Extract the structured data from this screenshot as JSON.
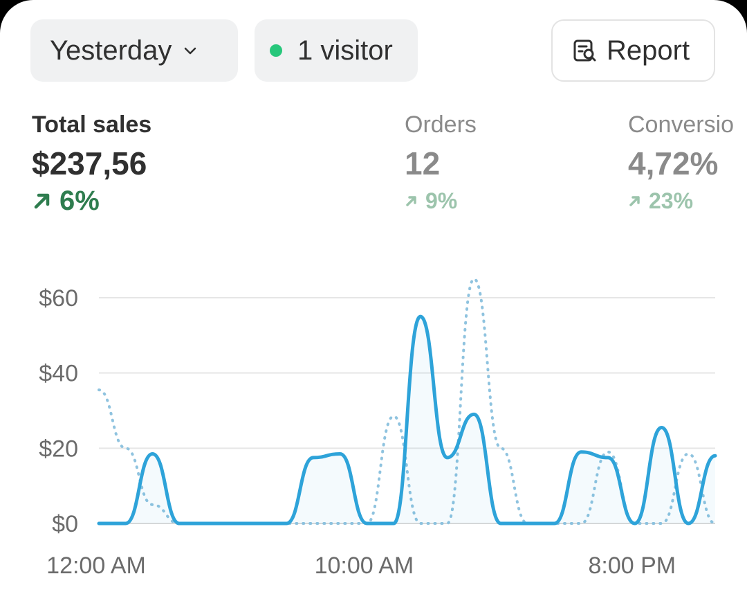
{
  "filter": {
    "date_label": "Yesterday",
    "visitors_label": "1 visitor"
  },
  "actions": {
    "report_label": "Report"
  },
  "metrics": [
    {
      "label": "Total sales",
      "value": "$237,56",
      "delta": "6%"
    },
    {
      "label": "Orders",
      "value": "12",
      "delta": "9%"
    },
    {
      "label": "Conversio",
      "value": "4,72%",
      "delta": "23%"
    }
  ],
  "colors": {
    "accent": "#2ea3d9",
    "positive": "#2f7d4f",
    "positive_muted": "#9cc4ac",
    "live_dot": "#27c77b"
  },
  "chart_data": {
    "type": "line",
    "x": [
      "12:00 AM",
      "1:00 AM",
      "2:00 AM",
      "3:00 AM",
      "4:00 AM",
      "5:00 AM",
      "6:00 AM",
      "7:00 AM",
      "8:00 AM",
      "9:00 AM",
      "10:00 AM",
      "11:00 AM",
      "12:00 PM",
      "1:00 PM",
      "2:00 PM",
      "3:00 PM",
      "4:00 PM",
      "5:00 PM",
      "6:00 PM",
      "7:00 PM",
      "8:00 PM",
      "9:00 PM",
      "10:00 PM",
      "11:00 PM"
    ],
    "xticks": [
      "12:00 AM",
      "10:00 AM",
      "8:00 PM"
    ],
    "yticks": [
      "$0",
      "$20",
      "$40",
      "$60"
    ],
    "ylim": [
      0,
      60
    ],
    "grid": true,
    "series": [
      {
        "style": "solid",
        "values": [
          0,
          0,
          18.5,
          0,
          0,
          0,
          0,
          0,
          17.5,
          18.5,
          0,
          0,
          55,
          17.5,
          29,
          0,
          0,
          0,
          19,
          17.5,
          0,
          25.5,
          0,
          18
        ]
      },
      {
        "style": "dotted",
        "values": [
          35.5,
          20,
          5,
          0,
          0,
          0,
          0,
          0,
          0,
          0,
          0,
          28.5,
          0,
          0,
          65,
          20,
          0,
          0,
          0,
          19,
          0,
          0,
          18.5,
          0
        ]
      }
    ]
  }
}
